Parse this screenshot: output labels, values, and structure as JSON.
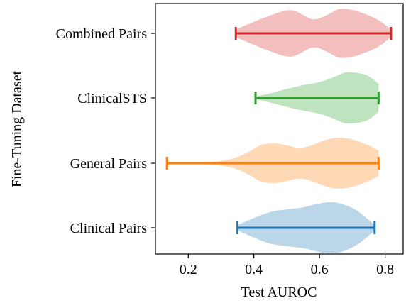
{
  "chart_data": {
    "type": "violin",
    "orientation": "horizontal",
    "xlabel": "Test AUROC",
    "ylabel": "Fine-Tuning Dataset",
    "xlim": [
      0.1,
      0.855
    ],
    "xticks": [
      0.2,
      0.4,
      0.6,
      0.8
    ],
    "xtick_labels": [
      "0.2",
      "0.4",
      "0.6",
      "0.8"
    ],
    "grid": false,
    "categories": [
      "Combined Pairs",
      "ClinicalSTS",
      "General Pairs",
      "Clinical Pairs"
    ],
    "series": [
      {
        "category": "Combined Pairs",
        "color": "#d62728",
        "min": 0.345,
        "max": 0.818,
        "density": [
          [
            0.345,
            0.15
          ],
          [
            0.4,
            0.45
          ],
          [
            0.45,
            0.7
          ],
          [
            0.5,
            0.9
          ],
          [
            0.53,
            0.85
          ],
          [
            0.58,
            0.55
          ],
          [
            0.62,
            0.7
          ],
          [
            0.66,
            0.95
          ],
          [
            0.7,
            0.92
          ],
          [
            0.74,
            0.75
          ],
          [
            0.78,
            0.52
          ],
          [
            0.818,
            0.15
          ]
        ]
      },
      {
        "category": "ClinicalSTS",
        "color": "#2ca02c",
        "min": 0.405,
        "max": 0.78,
        "density": [
          [
            0.405,
            0.05
          ],
          [
            0.45,
            0.18
          ],
          [
            0.5,
            0.35
          ],
          [
            0.55,
            0.5
          ],
          [
            0.6,
            0.62
          ],
          [
            0.65,
            0.85
          ],
          [
            0.68,
            1.0
          ],
          [
            0.72,
            0.97
          ],
          [
            0.75,
            0.85
          ],
          [
            0.78,
            0.55
          ]
        ]
      },
      {
        "category": "General Pairs",
        "color": "#ff7f0e",
        "min": 0.135,
        "max": 0.78,
        "density": [
          [
            0.135,
            0.03
          ],
          [
            0.2,
            0.04
          ],
          [
            0.28,
            0.06
          ],
          [
            0.34,
            0.2
          ],
          [
            0.38,
            0.42
          ],
          [
            0.42,
            0.7
          ],
          [
            0.46,
            0.78
          ],
          [
            0.5,
            0.7
          ],
          [
            0.54,
            0.6
          ],
          [
            0.58,
            0.72
          ],
          [
            0.62,
            0.92
          ],
          [
            0.66,
            1.0
          ],
          [
            0.7,
            0.93
          ],
          [
            0.74,
            0.75
          ],
          [
            0.78,
            0.5
          ]
        ]
      },
      {
        "category": "Clinical Pairs",
        "color": "#1f77b4",
        "min": 0.35,
        "max": 0.768,
        "density": [
          [
            0.35,
            0.1
          ],
          [
            0.4,
            0.38
          ],
          [
            0.45,
            0.62
          ],
          [
            0.5,
            0.72
          ],
          [
            0.55,
            0.8
          ],
          [
            0.6,
            0.95
          ],
          [
            0.64,
            1.0
          ],
          [
            0.68,
            0.88
          ],
          [
            0.72,
            0.62
          ],
          [
            0.768,
            0.1
          ]
        ]
      }
    ]
  }
}
